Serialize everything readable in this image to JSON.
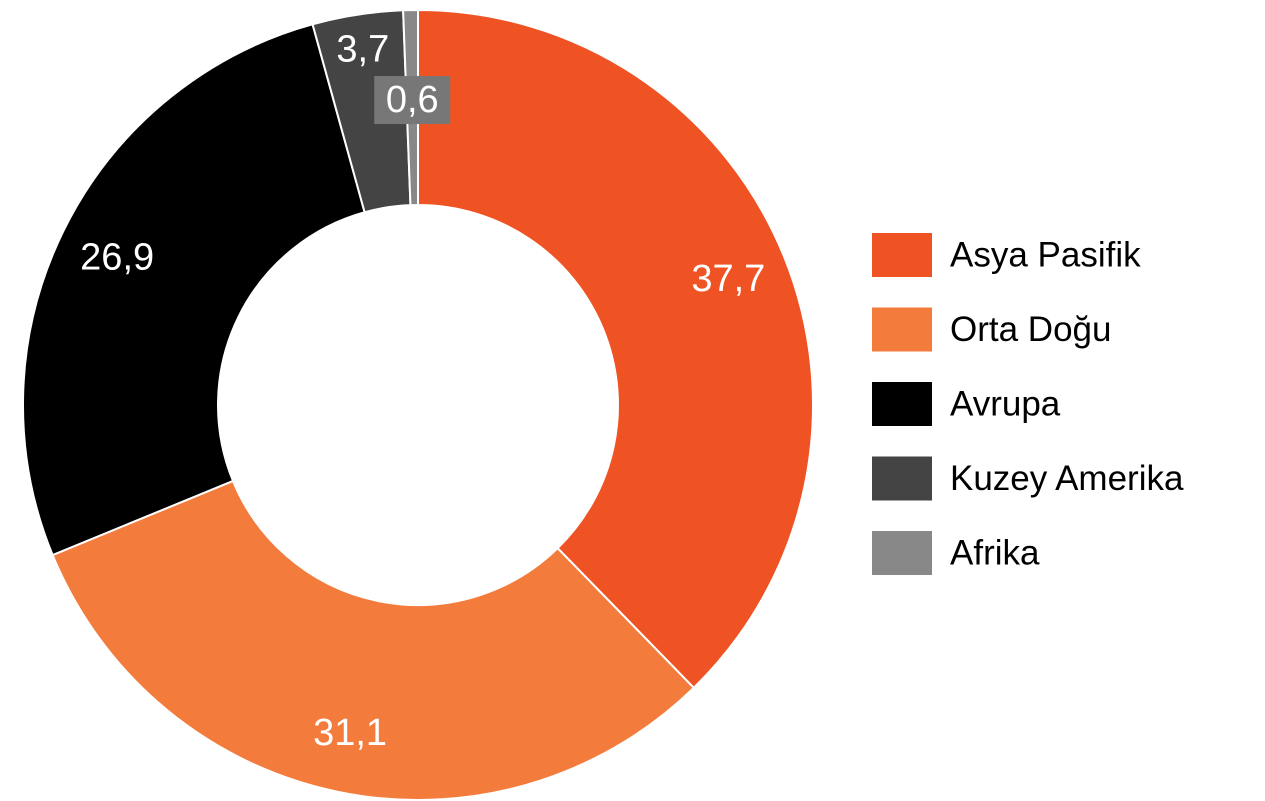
{
  "chart_data": {
    "type": "pie",
    "categories": [
      "Asya Pasifik",
      "Orta Doğu",
      "Avrupa",
      "Kuzey Amerika",
      "Afrika"
    ],
    "values": [
      37.7,
      31.1,
      26.9,
      3.7,
      0.6
    ],
    "value_labels": [
      "37,7",
      "31,1",
      "26,9",
      "3,7",
      "0,6"
    ],
    "colors": [
      "#f05323",
      "#f37b3c",
      "#000000",
      "#444444",
      "#888888"
    ],
    "legend": "right"
  }
}
